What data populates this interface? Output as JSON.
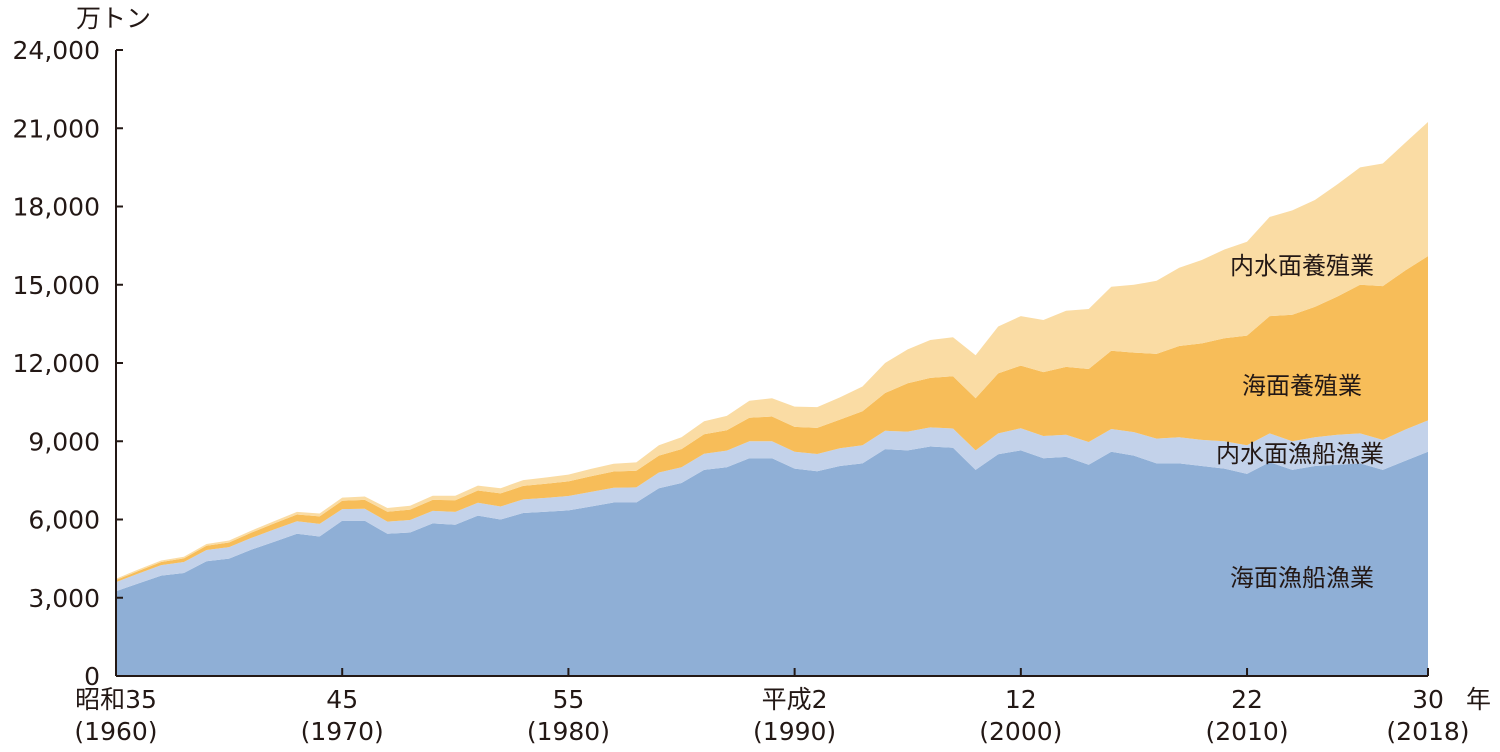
{
  "chart_data": {
    "type": "area",
    "stacked": true,
    "title": "",
    "ylabel": "万トン",
    "xlabel_unit": "年",
    "ylim": [
      0,
      24000
    ],
    "yticks": [
      0,
      3000,
      6000,
      9000,
      12000,
      15000,
      18000,
      21000,
      24000
    ],
    "ytick_labels": [
      "0",
      "3,000",
      "6,000",
      "9,000",
      "12,000",
      "15,000",
      "18,000",
      "21,000",
      "24,000"
    ],
    "xlim": [
      1960,
      2018
    ],
    "xticks": [
      {
        "year": 1960,
        "era": "昭和35",
        "western": "(1960)"
      },
      {
        "year": 1970,
        "era": "45",
        "western": "(1970)"
      },
      {
        "year": 1980,
        "era": "55",
        "western": "(1980)"
      },
      {
        "year": 1990,
        "era": "平成2",
        "western": "(1990)"
      },
      {
        "year": 2000,
        "era": "12",
        "western": "(2000)"
      },
      {
        "year": 2010,
        "era": "22",
        "western": "(2010)"
      },
      {
        "year": 2018,
        "era": "30",
        "western": "(2018)"
      }
    ],
    "x_start": 1960,
    "series": [
      {
        "name": "海面漁船漁業",
        "color": "#8FAFD6",
        "values": [
          3250,
          3550,
          3850,
          3950,
          4400,
          4500,
          4850,
          5150,
          5450,
          5350,
          5950,
          5950,
          5450,
          5500,
          5850,
          5800,
          6150,
          6000,
          6250,
          6300,
          6350,
          6500,
          6650,
          6650,
          7200,
          7400,
          7900,
          8000,
          8350,
          8350,
          7950,
          7850,
          8050,
          8150,
          8700,
          8650,
          8800,
          8750,
          7900,
          8500,
          8650,
          8350,
          8400,
          8100,
          8600,
          8450,
          8150,
          8150,
          8050,
          7950,
          7750,
          8200,
          7900,
          8050,
          8100,
          8150,
          7900,
          8250,
          8600
        ]
      },
      {
        "name": "内水面漁船漁業",
        "color": "#C3D2EA",
        "values": [
          350,
          380,
          400,
          420,
          430,
          440,
          450,
          470,
          480,
          480,
          450,
          460,
          470,
          480,
          480,
          490,
          490,
          500,
          520,
          530,
          550,
          560,
          570,
          580,
          600,
          600,
          620,
          640,
          650,
          650,
          650,
          660,
          680,
          700,
          700,
          720,
          730,
          740,
          750,
          800,
          850,
          850,
          850,
          870,
          870,
          900,
          950,
          1000,
          1000,
          1050,
          1100,
          1100,
          1100,
          1100,
          1150,
          1150,
          1150,
          1200,
          1200
        ]
      },
      {
        "name": "海面養殖業",
        "color": "#F7BD59",
        "values": [
          80,
          100,
          120,
          140,
          160,
          180,
          200,
          230,
          260,
          290,
          320,
          340,
          380,
          400,
          420,
          450,
          470,
          500,
          520,
          540,
          560,
          600,
          620,
          640,
          650,
          700,
          750,
          780,
          900,
          950,
          950,
          1000,
          1100,
          1300,
          1450,
          1850,
          1900,
          2000,
          2000,
          2300,
          2400,
          2450,
          2600,
          2800,
          3000,
          3050,
          3250,
          3500,
          3700,
          3950,
          4200,
          4500,
          4850,
          5000,
          5300,
          5700,
          5900,
          6100,
          6300
        ]
      },
      {
        "name": "内水面養殖業",
        "color": "#FADCA4",
        "values": [
          50,
          55,
          60,
          65,
          70,
          75,
          80,
          90,
          100,
          110,
          120,
          130,
          140,
          150,
          160,
          170,
          190,
          200,
          220,
          240,
          260,
          280,
          300,
          320,
          400,
          450,
          500,
          550,
          650,
          700,
          780,
          800,
          850,
          950,
          1150,
          1300,
          1450,
          1500,
          1650,
          1800,
          1900,
          2000,
          2150,
          2300,
          2450,
          2600,
          2800,
          3000,
          3200,
          3400,
          3600,
          3800,
          4000,
          4100,
          4300,
          4500,
          4700,
          4900,
          5140
        ]
      }
    ]
  }
}
